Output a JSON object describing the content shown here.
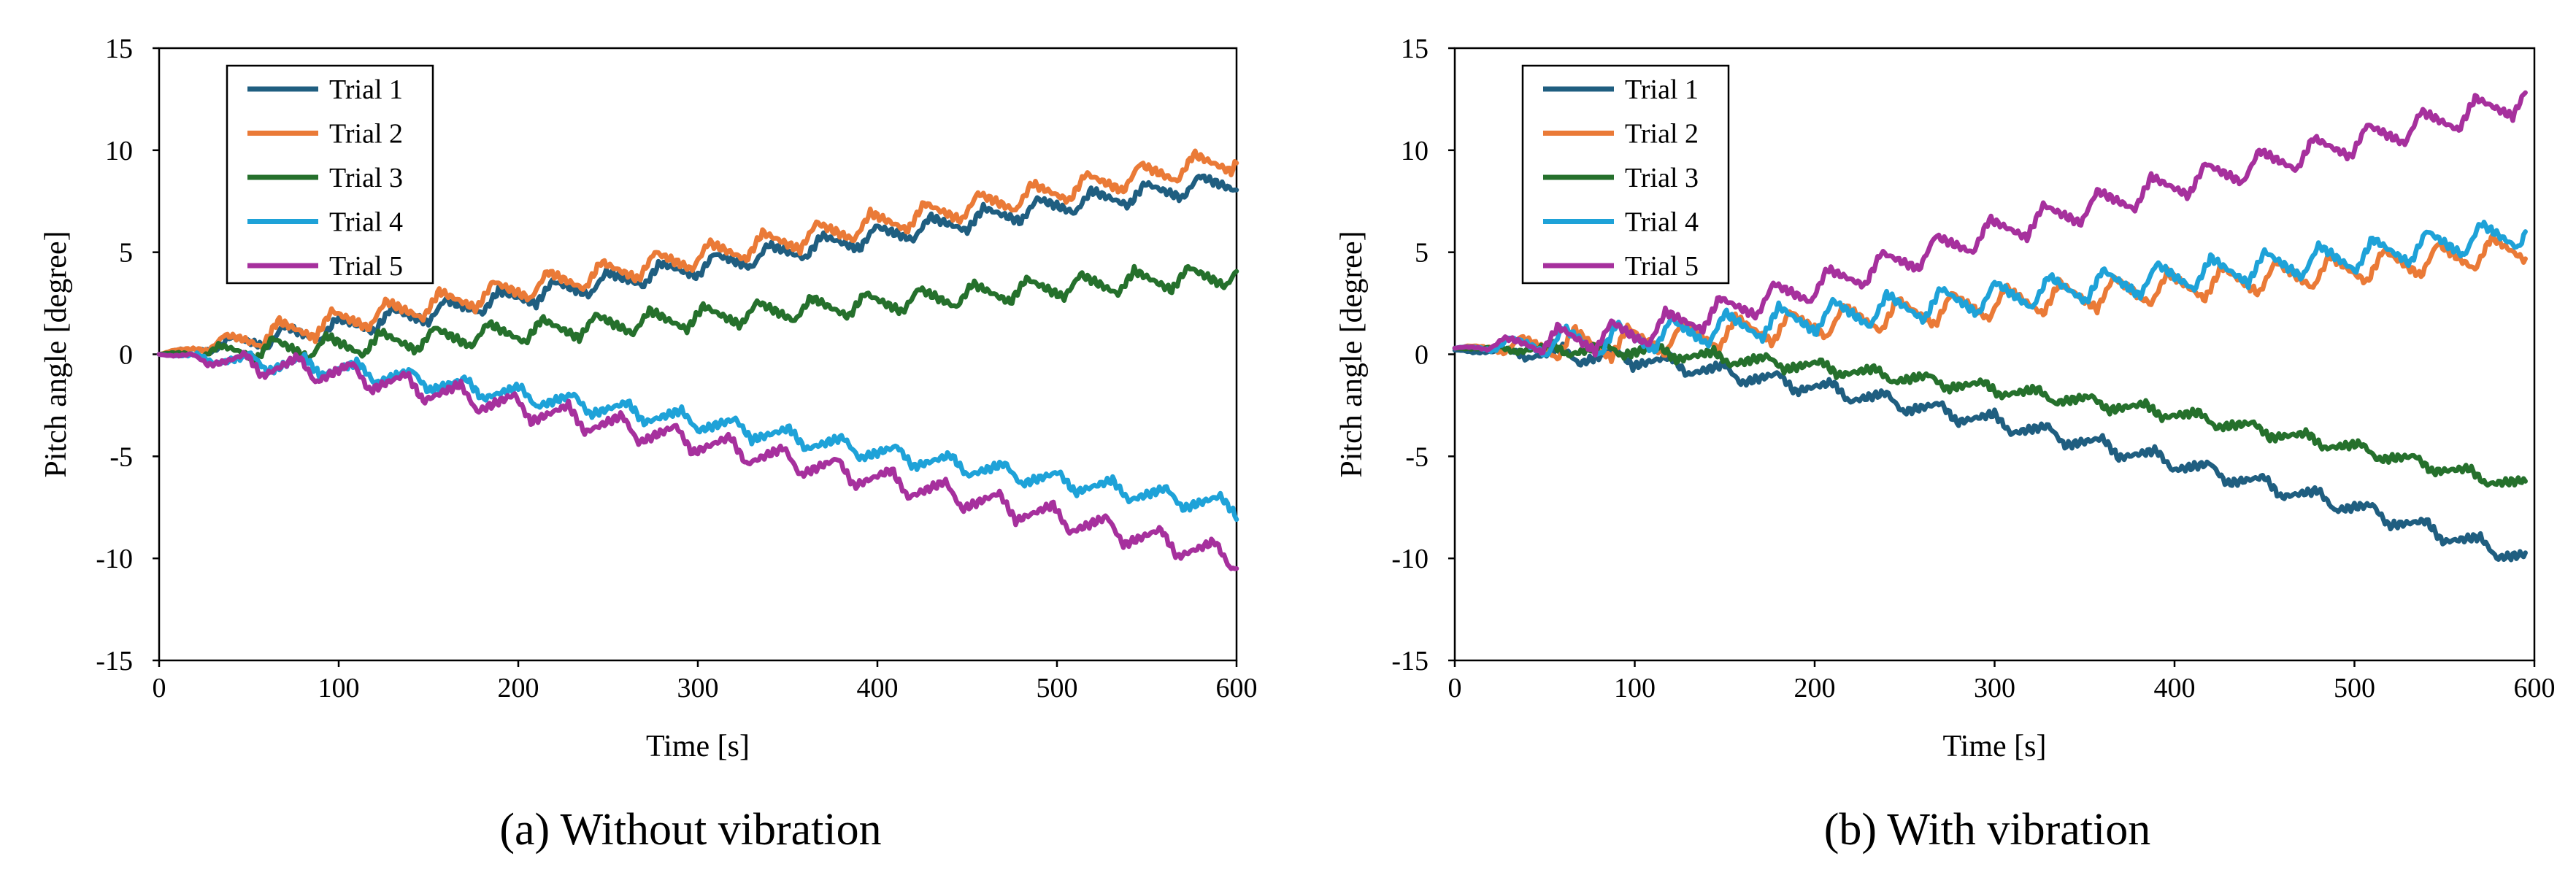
{
  "colors": {
    "Trial 1": "#1f5e80",
    "Trial 2": "#ea7a37",
    "Trial 3": "#25702c",
    "Trial 4": "#1ea2d8",
    "Trial 5": "#a6309d"
  },
  "chart_data": [
    {
      "type": "line",
      "caption": "(a) Without vibration",
      "xlabel": "Time [s]",
      "ylabel": "Pitch angle [degree]",
      "xlim": [
        0,
        600
      ],
      "ylim": [
        -15,
        15
      ],
      "xticks": [
        0,
        100,
        200,
        300,
        400,
        500,
        600
      ],
      "yticks": [
        -15,
        -10,
        -5,
        0,
        5,
        10,
        15
      ],
      "xtick_labels": [
        "0",
        "100",
        "200",
        "300",
        "400",
        "500",
        "600"
      ],
      "ytick_labels": [
        "-15",
        "-10",
        "-5",
        "0",
        "5",
        "10",
        "15"
      ],
      "legend": [
        "Trial 1",
        "Trial 2",
        "Trial 3",
        "Trial 4",
        "Trial 5"
      ],
      "legend_position": "top-left",
      "sawtooth_period_s": 30,
      "series": [
        {
          "name": "Trial 1",
          "x": [
            0,
            100,
            200,
            300,
            400,
            500,
            600
          ],
          "values": [
            0.0,
            1.3,
            2.8,
            4.3,
            5.8,
            7.3,
            8.5
          ],
          "oscillation_amplitude": 1.0
        },
        {
          "name": "Trial 2",
          "x": [
            0,
            100,
            200,
            300,
            400,
            500,
            600
          ],
          "values": [
            0.0,
            1.6,
            3.2,
            4.8,
            6.4,
            8.0,
            9.6
          ],
          "oscillation_amplitude": 1.2
        },
        {
          "name": "Trial 3",
          "x": [
            0,
            100,
            200,
            300,
            400,
            500,
            600
          ],
          "values": [
            0.0,
            0.4,
            1.1,
            1.8,
            2.5,
            3.3,
            3.9
          ],
          "oscillation_amplitude": 1.1
        },
        {
          "name": "Trial 4",
          "x": [
            0,
            100,
            200,
            300,
            400,
            500,
            600
          ],
          "values": [
            0.0,
            -0.7,
            -2.0,
            -3.3,
            -4.8,
            -6.2,
            -7.5
          ],
          "oscillation_amplitude": 0.9
        },
        {
          "name": "Trial 5",
          "x": [
            0,
            100,
            200,
            300,
            400,
            500,
            600
          ],
          "values": [
            0.0,
            -0.9,
            -2.6,
            -4.3,
            -6.1,
            -8.0,
            -10.0
          ],
          "oscillation_amplitude": 1.2
        }
      ]
    },
    {
      "type": "line",
      "caption": "(b) With vibration",
      "xlabel": "Time [s]",
      "ylabel": "Pitch angle [degree]",
      "xlim": [
        0,
        600
      ],
      "ylim": [
        -15,
        15
      ],
      "xticks": [
        0,
        100,
        200,
        300,
        400,
        500,
        600
      ],
      "yticks": [
        -15,
        -10,
        -5,
        0,
        5,
        10,
        15
      ],
      "xtick_labels": [
        "0",
        "100",
        "200",
        "300",
        "400",
        "500",
        "600"
      ],
      "ytick_labels": [
        "-15",
        "-10",
        "-5",
        "0",
        "5",
        "10",
        "15"
      ],
      "legend": [
        "Trial 1",
        "Trial 2",
        "Trial 3",
        "Trial 4",
        "Trial 5"
      ],
      "legend_position": "top-left",
      "sawtooth_period_s": 30,
      "series": [
        {
          "name": "Trial 1",
          "x": [
            0,
            100,
            200,
            300,
            400,
            500,
            595
          ],
          "values": [
            0.2,
            -0.2,
            -1.6,
            -3.3,
            -5.3,
            -7.5,
            -10.0
          ],
          "oscillation_amplitude": 0.8
        },
        {
          "name": "Trial 2",
          "x": [
            0,
            100,
            200,
            300,
            400,
            500,
            595
          ],
          "values": [
            0.3,
            0.6,
            1.5,
            2.5,
            3.3,
            4.2,
            5.2
          ],
          "oscillation_amplitude": 1.5
        },
        {
          "name": "Trial 3",
          "x": [
            0,
            100,
            200,
            300,
            400,
            500,
            595
          ],
          "values": [
            0.3,
            0.2,
            -0.6,
            -1.7,
            -2.9,
            -4.6,
            -6.5
          ],
          "oscillation_amplitude": 0.6
        },
        {
          "name": "Trial 4",
          "x": [
            0,
            100,
            200,
            300,
            400,
            500,
            595
          ],
          "values": [
            0.3,
            0.8,
            1.8,
            2.8,
            3.8,
            4.8,
            6.0
          ],
          "oscillation_amplitude": 1.5
        },
        {
          "name": "Trial 5",
          "x": [
            0,
            100,
            200,
            300,
            400,
            500,
            595
          ],
          "values": [
            0.3,
            1.0,
            3.3,
            6.0,
            8.3,
            10.4,
            12.5
          ],
          "oscillation_amplitude": 1.4
        }
      ]
    }
  ]
}
